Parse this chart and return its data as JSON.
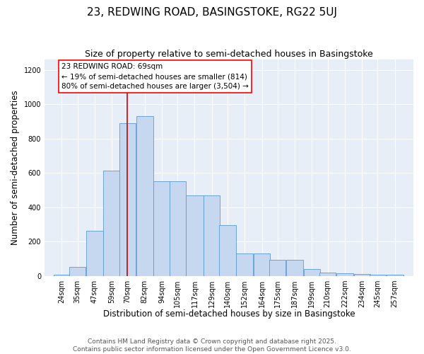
{
  "title": "23, REDWING ROAD, BASINGSTOKE, RG22 5UJ",
  "subtitle": "Size of property relative to semi-detached houses in Basingstoke",
  "xlabel": "Distribution of semi-detached houses by size in Basingstoke",
  "ylabel": "Number of semi-detached properties",
  "bar_labels": [
    "24sqm",
    "35sqm",
    "47sqm",
    "59sqm",
    "70sqm",
    "82sqm",
    "94sqm",
    "105sqm",
    "117sqm",
    "129sqm",
    "140sqm",
    "152sqm",
    "164sqm",
    "175sqm",
    "187sqm",
    "199sqm",
    "210sqm",
    "222sqm",
    "234sqm",
    "245sqm",
    "257sqm"
  ],
  "label_vals": [
    24,
    35,
    47,
    59,
    70,
    82,
    94,
    105,
    117,
    129,
    140,
    152,
    164,
    175,
    187,
    199,
    210,
    222,
    234,
    245,
    257
  ],
  "bar_heights": [
    8,
    55,
    265,
    615,
    890,
    930,
    550,
    550,
    470,
    470,
    295,
    130,
    130,
    95,
    95,
    40,
    20,
    15,
    10,
    8,
    8
  ],
  "bar_color": "#c5d8f0",
  "bar_edge_color": "#5b9bd5",
  "vline_x": 70,
  "vline_color": "#cc0000",
  "ylim": [
    0,
    1260
  ],
  "yticks": [
    0,
    200,
    400,
    600,
    800,
    1000,
    1200
  ],
  "bg_color": "#e8eef8",
  "annotation_line1": "23 REDWING ROAD: 69sqm",
  "annotation_line2": "← 19% of semi-detached houses are smaller (814)",
  "annotation_line3": "80% of semi-detached houses are larger (3,504) →",
  "footer1": "Contains HM Land Registry data © Crown copyright and database right 2025.",
  "footer2": "Contains public sector information licensed under the Open Government Licence v3.0.",
  "title_fontsize": 11,
  "subtitle_fontsize": 9,
  "axis_label_fontsize": 8.5,
  "tick_fontsize": 7,
  "annotation_fontsize": 7.5,
  "footer_fontsize": 6.5
}
